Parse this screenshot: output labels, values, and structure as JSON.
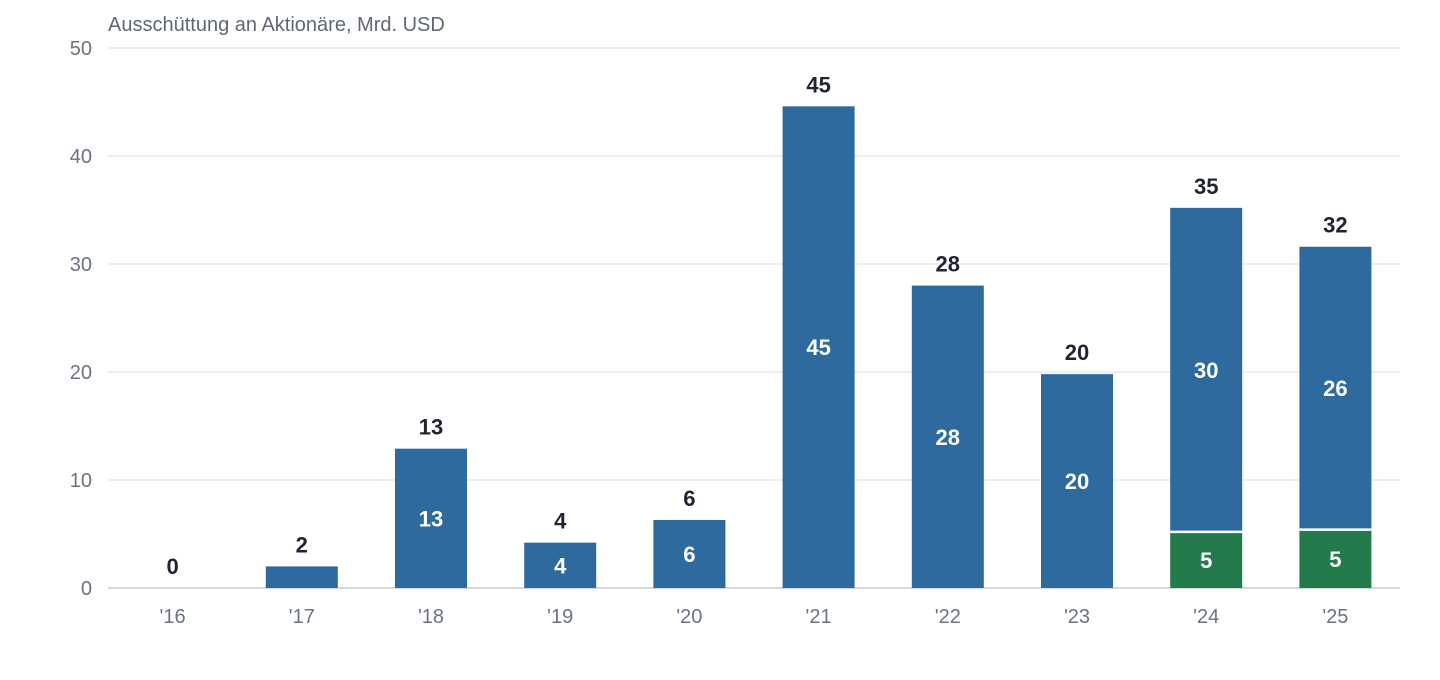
{
  "chart_data": {
    "type": "bar",
    "stacked": true,
    "ylabel": "Ausschüttung an Aktionäre, Mrd. USD",
    "xlabel": "",
    "categories": [
      "'16",
      "'17",
      "'18",
      "'19",
      "'20",
      "'21",
      "'22",
      "'23",
      "'24",
      "'25"
    ],
    "ylim": [
      0,
      50
    ],
    "yticks": [
      0,
      10,
      20,
      30,
      40,
      50
    ],
    "grid": true,
    "totals": [
      0,
      2,
      13,
      4,
      6,
      45,
      28,
      20,
      35,
      32
    ],
    "series": [
      {
        "color": "#237b4b",
        "values": [
          0,
          0,
          0,
          0,
          0,
          0,
          0,
          0,
          5.2,
          5.4
        ],
        "labels": [
          null,
          null,
          null,
          null,
          null,
          null,
          null,
          null,
          "5",
          "5"
        ]
      },
      {
        "color": "#2e6a9e",
        "values": [
          0,
          2,
          12.9,
          4.2,
          6.3,
          44.6,
          28,
          19.8,
          30.0,
          26.2
        ],
        "labels": [
          null,
          null,
          "13",
          "4",
          "6",
          "45",
          "28",
          "20",
          "30",
          "26"
        ]
      }
    ]
  }
}
